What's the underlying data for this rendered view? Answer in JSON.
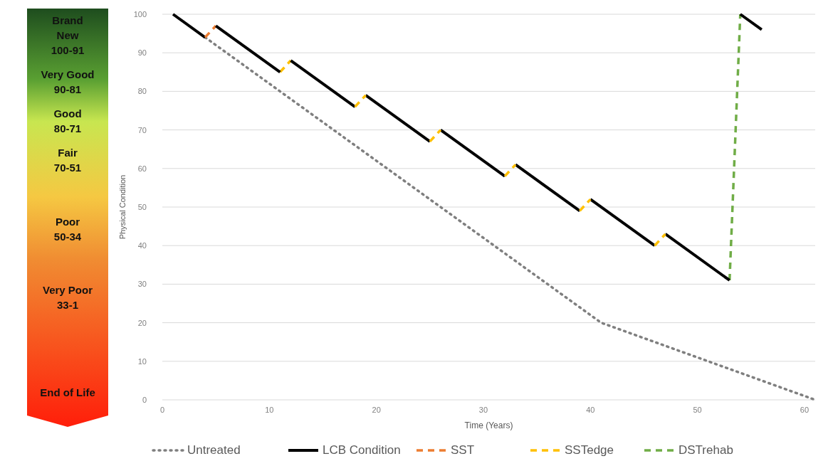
{
  "chart_data": {
    "type": "line",
    "xlabel": "Time (Years)",
    "ylabel": "Physical Condition",
    "xlim": [
      0,
      61
    ],
    "ylim": [
      0,
      100
    ],
    "xticks": [
      0,
      10,
      20,
      30,
      40,
      50,
      60
    ],
    "yticks": [
      0,
      10,
      20,
      30,
      40,
      50,
      60,
      70,
      80,
      90,
      100
    ],
    "grid": "y",
    "legend": "bottom",
    "marker": "none",
    "annotations": [
      "Brand\nNew\n100-91",
      "Very Good\n90-81",
      "Good\n80-71",
      "Fair\n70-51",
      "Poor\n50-34",
      "Very Poor\n33-1",
      "End of Life"
    ],
    "series": [
      {
        "name": "Untreated",
        "color": "#7f7f7f",
        "line_style": "dotted",
        "x": [
          4,
          41,
          61
        ],
        "values": [
          94,
          20,
          0
        ]
      },
      {
        "name": "LCB Condition",
        "color": "#000000",
        "line_style": "solid",
        "x": [
          1,
          4
        ],
        "values": [
          100,
          94
        ]
      },
      {
        "name": "SST",
        "color": "#ed7d31",
        "line_style": "dashed",
        "x": [
          4,
          5
        ],
        "values": [
          94,
          97
        ]
      },
      {
        "name": "SSTedge",
        "color": "#ffc000",
        "line_style": "dashed",
        "x": [
          11,
          12
        ],
        "values": [
          85,
          88
        ]
      },
      {
        "name": "DSTrehab",
        "color": "#70ad47",
        "line_style": "dashed",
        "x": [
          53,
          54
        ],
        "values": [
          31,
          100
        ]
      },
      {
        "color": "#000000",
        "line_style": "solid",
        "x": [
          5,
          11
        ],
        "values": [
          97,
          85
        ]
      },
      {
        "color": "#000000",
        "line_style": "solid",
        "x": [
          12,
          18
        ],
        "values": [
          88,
          76
        ]
      },
      {
        "color": "#000000",
        "line_style": "solid",
        "x": [
          19,
          25
        ],
        "values": [
          79,
          67
        ]
      },
      {
        "color": "#000000",
        "line_style": "solid",
        "x": [
          26,
          32
        ],
        "values": [
          70,
          58
        ]
      },
      {
        "color": "#000000",
        "line_style": "solid",
        "x": [
          33,
          39
        ],
        "values": [
          61,
          49
        ]
      },
      {
        "color": "#000000",
        "line_style": "solid",
        "x": [
          40,
          46
        ],
        "values": [
          52,
          40
        ]
      },
      {
        "color": "#000000",
        "line_style": "solid",
        "x": [
          47,
          53
        ],
        "values": [
          43,
          31
        ]
      },
      {
        "color": "#000000",
        "line_style": "solid",
        "x": [
          54,
          56
        ],
        "values": [
          100,
          96
        ]
      },
      {
        "color": "#ffc000",
        "line_style": "dashed",
        "x": [
          18,
          19
        ],
        "values": [
          76,
          79
        ]
      },
      {
        "color": "#ffc000",
        "line_style": "dashed",
        "x": [
          25,
          26
        ],
        "values": [
          67,
          70
        ]
      },
      {
        "color": "#ffc000",
        "line_style": "dashed",
        "x": [
          32,
          33
        ],
        "values": [
          58,
          61
        ]
      },
      {
        "color": "#ffc000",
        "line_style": "dashed",
        "x": [
          39,
          40
        ],
        "values": [
          49,
          52
        ]
      },
      {
        "color": "#ffc000",
        "line_style": "dashed",
        "x": [
          46,
          47
        ],
        "values": [
          40,
          43
        ]
      }
    ]
  }
}
